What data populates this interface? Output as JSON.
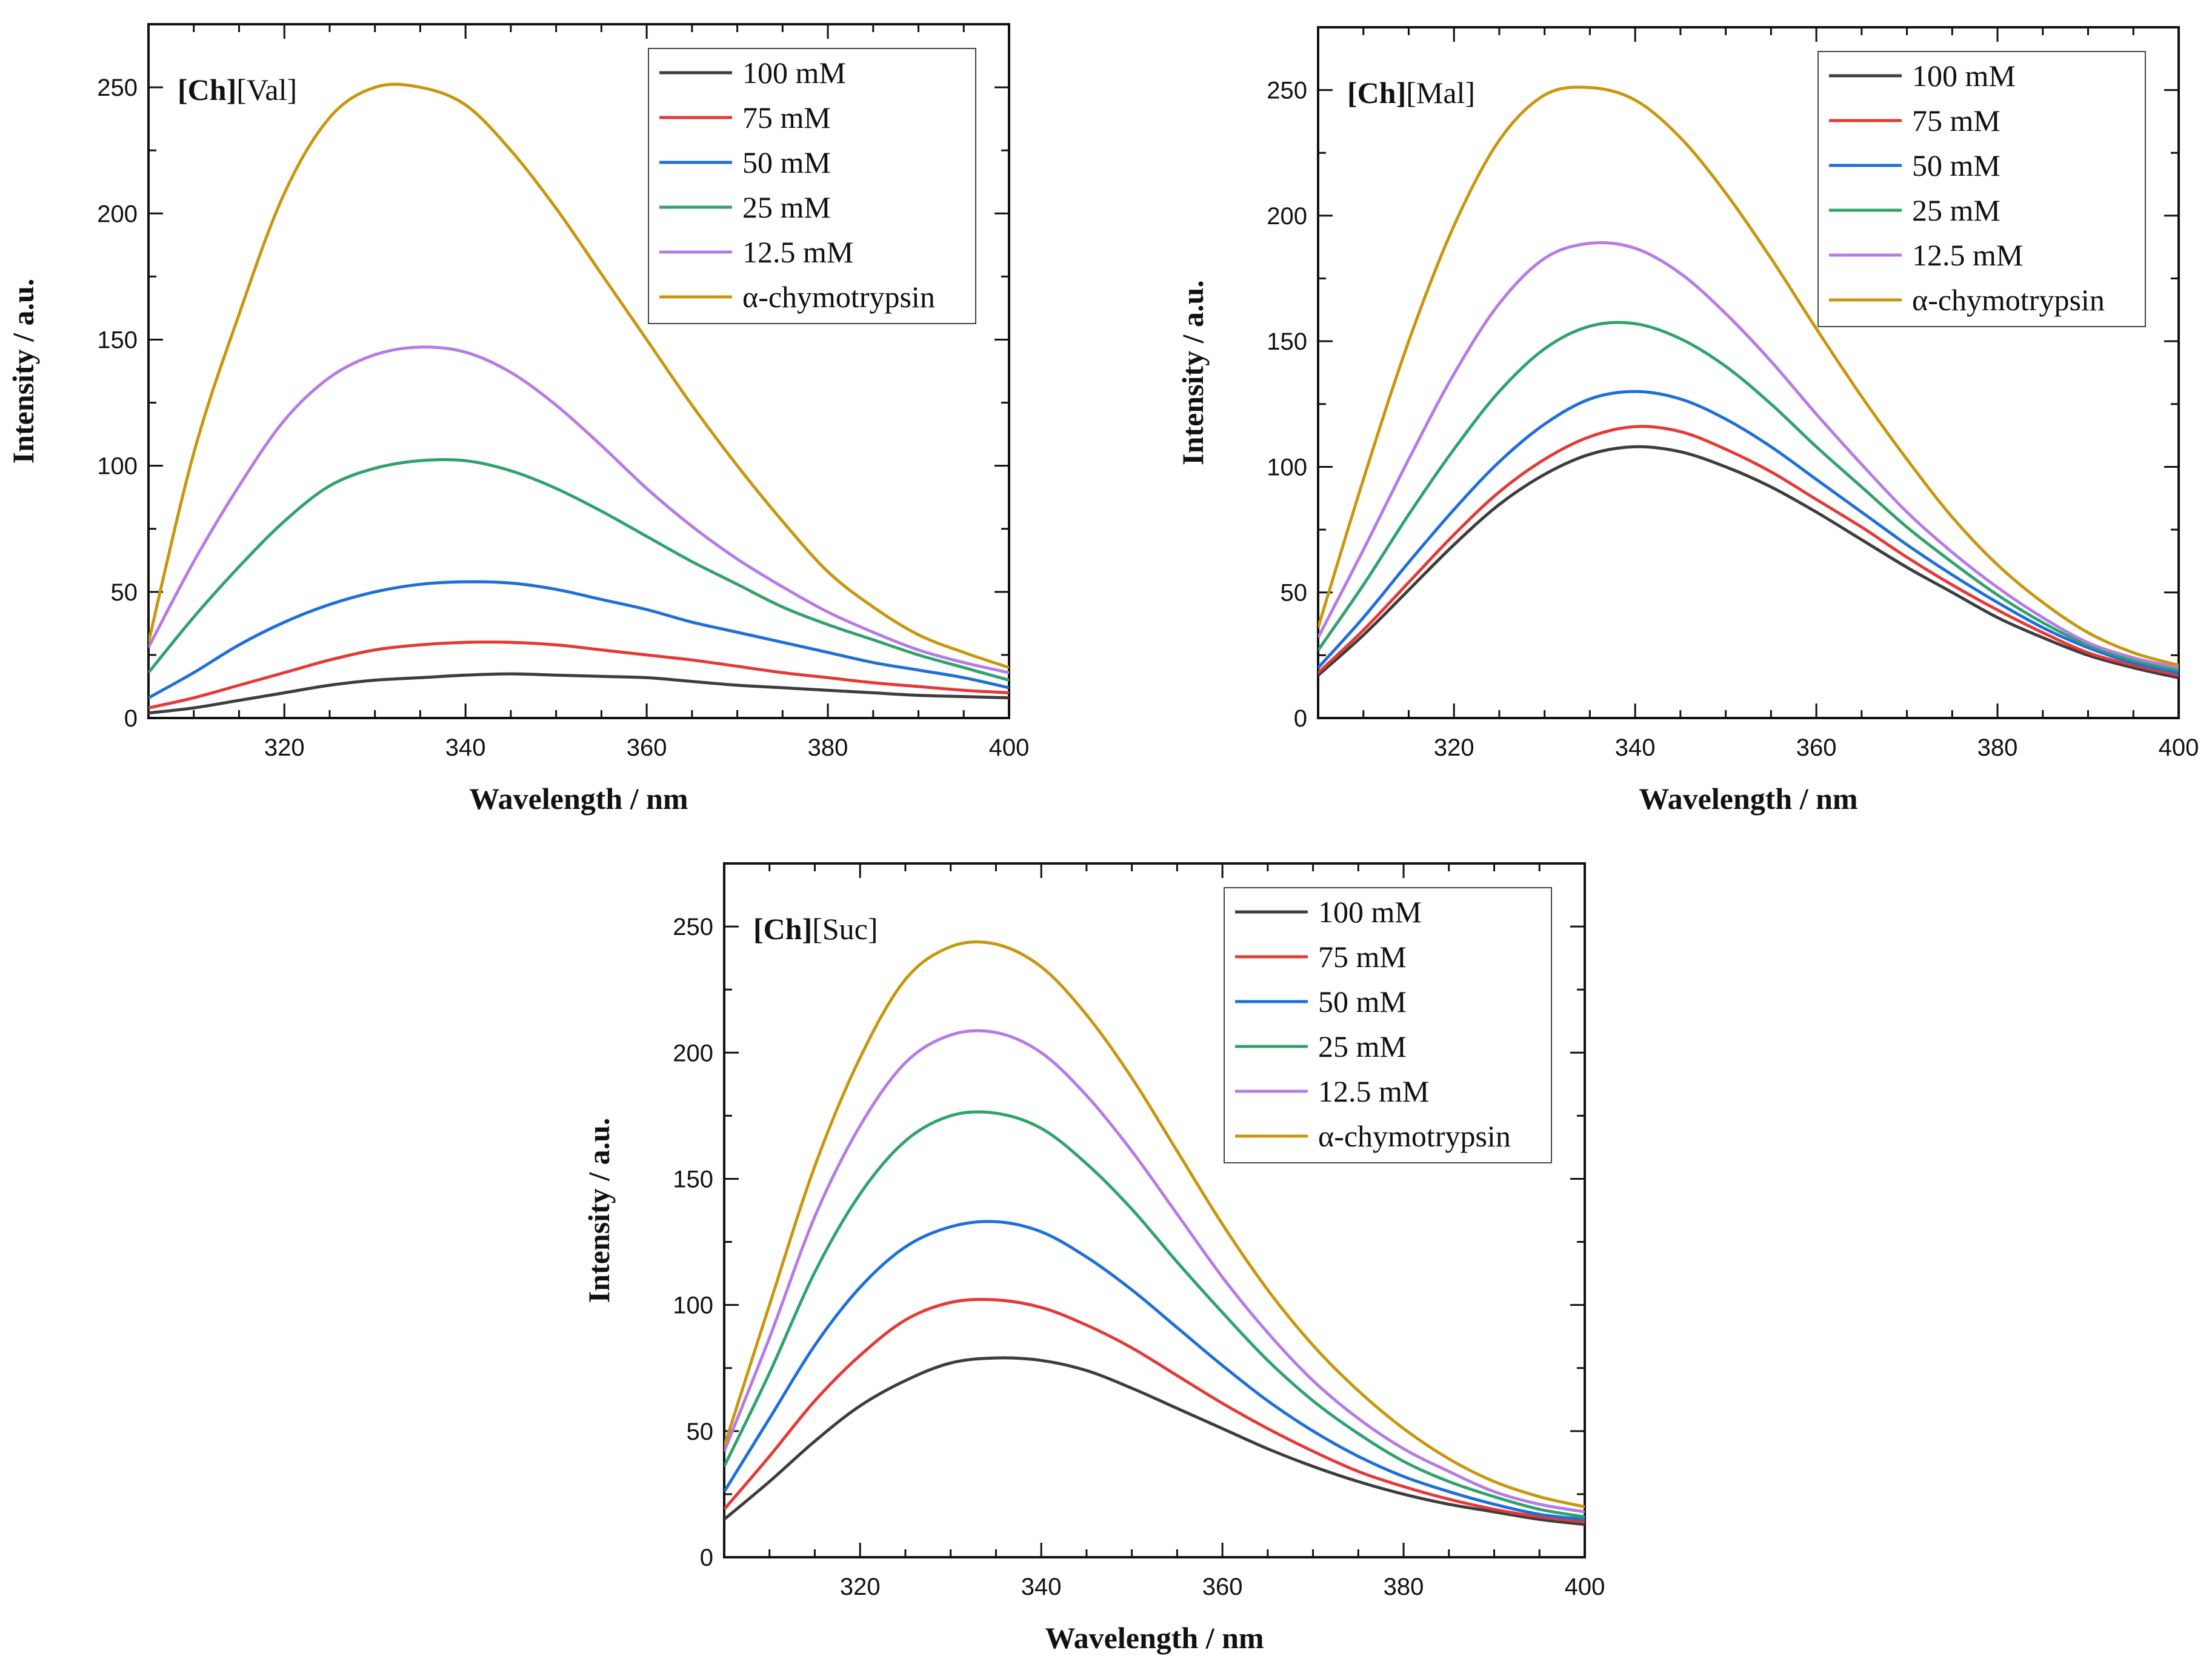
{
  "chart_data": [
    {
      "type": "line",
      "label_bold": "[Ch]",
      "label_rest": "[Val]",
      "xlabel": "Wavelength / nm",
      "ylabel": "Intensity / a.u.",
      "xlim": [
        305,
        400
      ],
      "ylim": [
        0,
        275
      ],
      "xticks": [
        320,
        340,
        360,
        380,
        400
      ],
      "yticks": [
        0,
        50,
        100,
        150,
        200,
        250
      ],
      "x": [
        305,
        310,
        315,
        320,
        325,
        330,
        335,
        340,
        345,
        350,
        355,
        360,
        365,
        370,
        375,
        380,
        385,
        390,
        395,
        400
      ],
      "series": [
        {
          "name": "100 mM",
          "color": "#3d3d3d",
          "values": [
            2,
            4,
            7,
            10,
            13,
            15,
            16,
            17,
            17.5,
            17,
            16.5,
            16,
            14.5,
            13,
            12,
            11,
            10,
            9,
            8.5,
            8
          ]
        },
        {
          "name": "75 mM",
          "color": "#e53935",
          "values": [
            4,
            8,
            13,
            18,
            23,
            27,
            29,
            30,
            30,
            29,
            27,
            25,
            23,
            20.5,
            18,
            16,
            14,
            12.5,
            11,
            10
          ]
        },
        {
          "name": "50 mM",
          "color": "#1e6fd9",
          "values": [
            8,
            18,
            29,
            38,
            45,
            50,
            53,
            54,
            53.5,
            51,
            47,
            43,
            38,
            34,
            30,
            26,
            22,
            19,
            16,
            12
          ]
        },
        {
          "name": "25 mM",
          "color": "#2fa36b",
          "values": [
            18,
            40,
            60,
            78,
            92,
            99,
            102,
            102,
            98,
            91,
            82,
            72,
            62,
            53,
            44,
            37,
            31,
            25,
            20,
            15
          ]
        },
        {
          "name": "12.5 mM",
          "color": "#b57be6",
          "values": [
            28,
            62,
            92,
            118,
            135,
            144,
            147,
            145,
            137,
            124,
            108,
            91,
            76,
            63,
            52,
            42,
            34,
            27,
            22,
            18
          ]
        },
        {
          "name": "α-chymotrypsin",
          "color": "#c9960c",
          "values": [
            30,
            105,
            160,
            208,
            238,
            250,
            250,
            243,
            225,
            202,
            176,
            150,
            124,
            100,
            78,
            58,
            44,
            33,
            26,
            20
          ]
        }
      ]
    },
    {
      "type": "line",
      "label_bold": "[Ch]",
      "label_rest": "[Mal]",
      "xlabel": "Wavelength / nm",
      "ylabel": "Intensity / a.u.",
      "xlim": [
        305,
        400
      ],
      "ylim": [
        0,
        275
      ],
      "xticks": [
        320,
        340,
        360,
        380,
        400
      ],
      "yticks": [
        0,
        50,
        100,
        150,
        200,
        250
      ],
      "x": [
        305,
        310,
        315,
        320,
        325,
        330,
        335,
        340,
        345,
        350,
        355,
        360,
        365,
        370,
        375,
        380,
        385,
        390,
        395,
        400
      ],
      "series": [
        {
          "name": "100 mM",
          "color": "#3d3d3d",
          "values": [
            17,
            33,
            51,
            69,
            85,
            97,
            105,
            108,
            106,
            100,
            92,
            82,
            71,
            60,
            50,
            40,
            32,
            25,
            20,
            16
          ]
        },
        {
          "name": "75 mM",
          "color": "#e53935",
          "values": [
            18,
            35,
            54,
            73,
            90,
            103,
            112,
            116,
            114,
            107,
            98,
            87,
            76,
            64,
            53,
            43,
            34,
            26,
            21,
            17
          ]
        },
        {
          "name": "50 mM",
          "color": "#1e6fd9",
          "values": [
            20,
            40,
            62,
            83,
            102,
            117,
            127,
            130,
            127,
            119,
            108,
            95,
            82,
            69,
            57,
            46,
            36,
            28,
            22,
            18
          ]
        },
        {
          "name": "25 mM",
          "color": "#2fa36b",
          "values": [
            27,
            53,
            81,
            107,
            130,
            147,
            156,
            157,
            151,
            140,
            125,
            108,
            92,
            76,
            62,
            49,
            38,
            29,
            23,
            19
          ]
        },
        {
          "name": "12.5 mM",
          "color": "#b57be6",
          "values": [
            32,
            67,
            103,
            137,
            165,
            183,
            189,
            187,
            177,
            161,
            142,
            121,
            101,
            82,
            66,
            52,
            40,
            30,
            24,
            20
          ]
        },
        {
          "name": "α-chymotrypsin",
          "color": "#c9960c",
          "values": [
            36,
            95,
            150,
            196,
            230,
            248,
            251,
            246,
            231,
            209,
            183,
            155,
            128,
            103,
            80,
            61,
            46,
            34,
            26,
            21
          ]
        }
      ]
    },
    {
      "type": "line",
      "label_bold": "[Ch]",
      "label_rest": "[Suc]",
      "xlabel": "Wavelength / nm",
      "ylabel": "Intensity / a.u.",
      "xlim": [
        305,
        400
      ],
      "ylim": [
        0,
        275
      ],
      "xticks": [
        320,
        340,
        360,
        380,
        400
      ],
      "yticks": [
        0,
        50,
        100,
        150,
        200,
        250
      ],
      "x": [
        305,
        310,
        315,
        320,
        325,
        330,
        335,
        340,
        345,
        350,
        355,
        360,
        365,
        370,
        375,
        380,
        385,
        390,
        395,
        400
      ],
      "series": [
        {
          "name": "100 mM",
          "color": "#3d3d3d",
          "values": [
            15,
            30,
            46,
            60,
            70,
            77,
            79,
            78,
            74,
            67,
            59,
            51,
            43,
            36,
            30,
            25,
            21,
            18,
            15,
            13
          ]
        },
        {
          "name": "75 mM",
          "color": "#e53935",
          "values": [
            19,
            40,
            62,
            80,
            94,
            101,
            102,
            99,
            92,
            83,
            72,
            61,
            51,
            42,
            34,
            28,
            23,
            19,
            16,
            14
          ]
        },
        {
          "name": "50 mM",
          "color": "#1e6fd9",
          "values": [
            26,
            55,
            84,
            107,
            123,
            131,
            133,
            129,
            119,
            106,
            91,
            76,
            62,
            50,
            40,
            32,
            26,
            21,
            17,
            15
          ]
        },
        {
          "name": "25 mM",
          "color": "#2fa36b",
          "values": [
            36,
            73,
            113,
            144,
            165,
            175,
            176,
            170,
            156,
            138,
            117,
            97,
            78,
            62,
            49,
            38,
            30,
            24,
            19,
            16
          ]
        },
        {
          "name": "12.5 mM",
          "color": "#b57be6",
          "values": [
            42,
            87,
            135,
            171,
            196,
            207,
            208,
            200,
            183,
            161,
            136,
            111,
            89,
            70,
            55,
            43,
            34,
            26,
            21,
            18
          ]
        },
        {
          "name": "α-chymotrypsin",
          "color": "#c9960c",
          "values": [
            44,
            100,
            155,
            198,
            229,
            242,
            243,
            234,
            215,
            190,
            161,
            132,
            106,
            84,
            66,
            51,
            39,
            30,
            24,
            20
          ]
        }
      ]
    }
  ]
}
